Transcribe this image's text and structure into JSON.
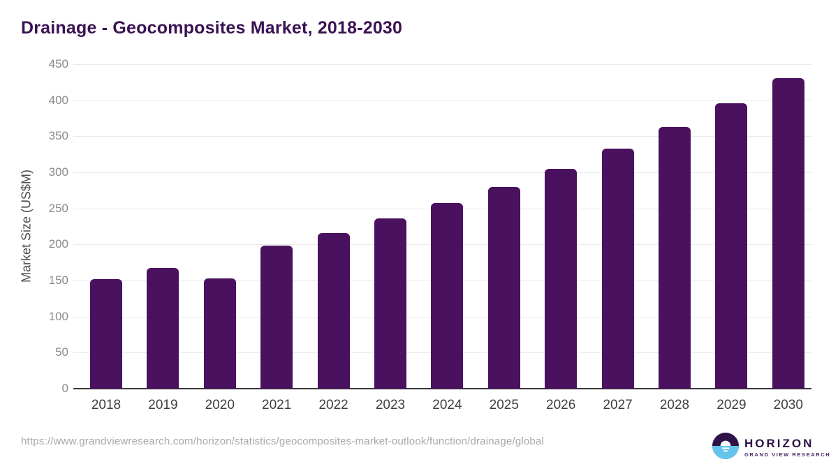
{
  "title": "Drainage - Geocomposites Market, 2018-2030",
  "chart_data": {
    "type": "bar",
    "categories": [
      "2018",
      "2019",
      "2020",
      "2021",
      "2022",
      "2023",
      "2024",
      "2025",
      "2026",
      "2027",
      "2028",
      "2029",
      "2030"
    ],
    "values": [
      152,
      167,
      153,
      198,
      216,
      236,
      257,
      280,
      305,
      333,
      363,
      396,
      431
    ],
    "title": "Drainage - Geocomposites Market, 2018-2030",
    "xlabel": "",
    "ylabel": "Market Size (US$M)",
    "ylim": [
      0,
      450
    ],
    "ytick_step": 50,
    "grid": "horizontal",
    "legend": "none",
    "bar_color": "#4a115e"
  },
  "colors": {
    "background": "#ffffff",
    "title_text": "#3a1353",
    "bar": "#4a115e",
    "gridline": "#e9e9e9",
    "axis_line": "#3a3a3a",
    "y_tick_text": "#8a8a8a",
    "x_tick_text": "#3f3f3f",
    "url_text": "#a8a8a8",
    "logo_purple": "#2e1248",
    "logo_blue": "#64c4ec"
  },
  "footer": {
    "source_url": "https://www.grandviewresearch.com/horizon/statistics/geocomposites-market-outlook/function/drainage/global",
    "logo": {
      "name": "HORIZON",
      "subtitle": "GRAND VIEW RESEARCH"
    }
  }
}
